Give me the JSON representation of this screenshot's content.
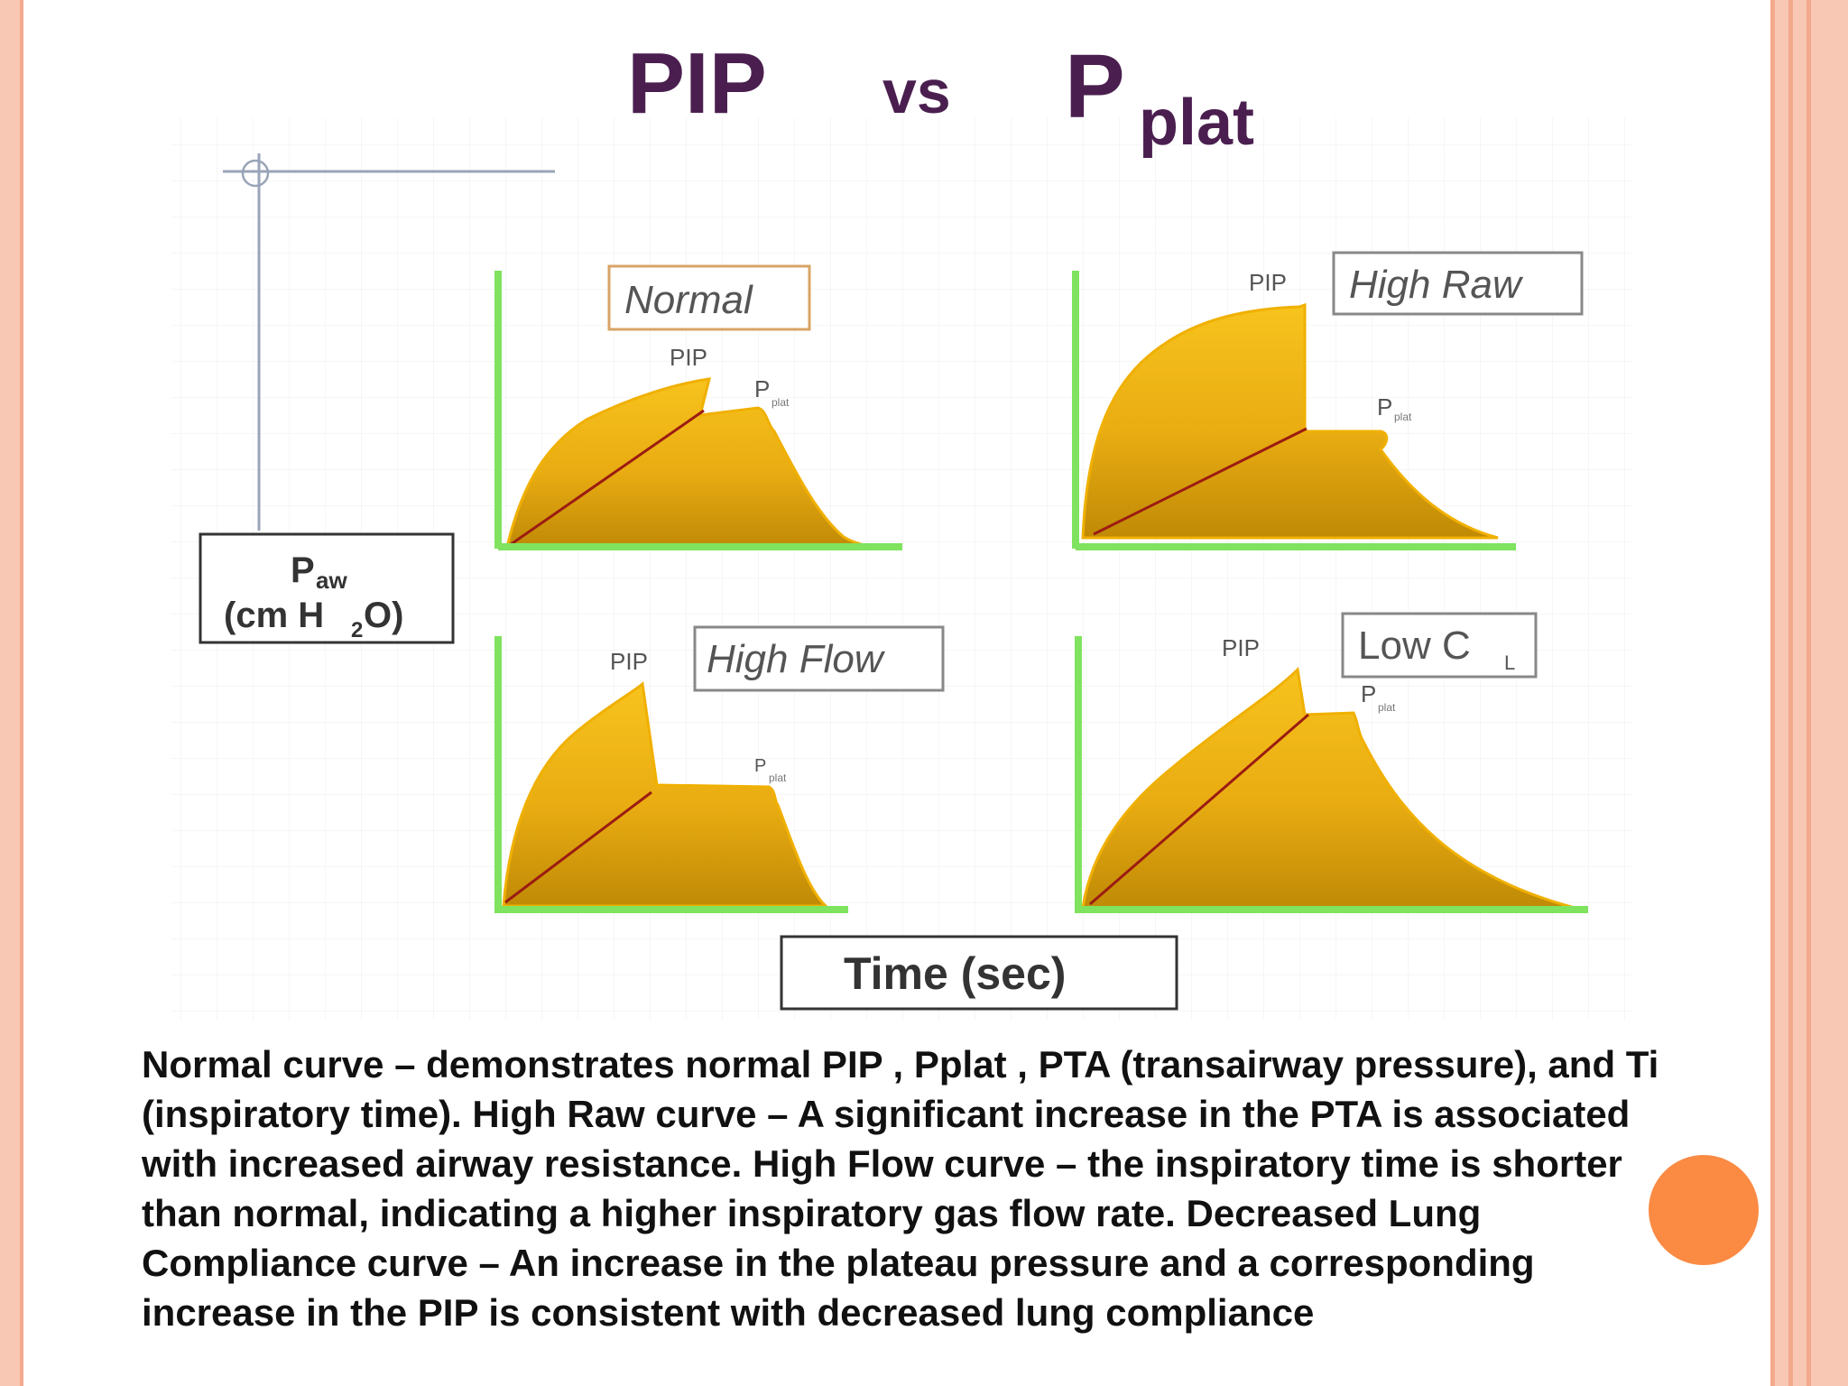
{
  "title": {
    "main": "PIP",
    "vs": "vs",
    "p": "P",
    "sub": "plat"
  },
  "y_axis": {
    "p": "P",
    "p_sub": "aw",
    "unit_pre": "(cm H",
    "unit_sub": "2",
    "unit_post": "O)"
  },
  "x_axis": {
    "label": "Time (sec)"
  },
  "panels": [
    {
      "id": "normal",
      "label": "Normal",
      "pip": "PIP",
      "pplat": "P",
      "pplat_sub": "plat"
    },
    {
      "id": "high-raw",
      "label": "High Raw",
      "pip": "PIP",
      "pplat": "P",
      "pplat_sub": "plat"
    },
    {
      "id": "high-flow",
      "label": "High Flow",
      "pip": "PIP",
      "pplat": "P",
      "pplat_sub": "plat"
    },
    {
      "id": "low-cl",
      "label": "Low C",
      "label_sub": "L",
      "pip": "PIP",
      "pplat": "P",
      "pplat_sub": "plat"
    }
  ],
  "caption": "Normal curve – demonstrates normal PIP , Pplat , PTA (transairway pressure), and Ti (inspiratory time). High Raw curve – A significant increase in the PTA is associated with increased airway resistance. High Flow curve – the inspiratory time is shorter than normal, indicating a higher inspiratory gas flow rate. Decreased Lung Compliance curve – An increase in the plateau pressure and a corresponding increase in the PIP is consistent with decreased lung compliance",
  "colors": {
    "title": "#4a1f4f",
    "axis_green": "#7fe35f",
    "fill_gold": "#f2b81a",
    "fill_dark": "#b8860b",
    "ramp_red": "#9b1c12",
    "accent": "#fb8a43",
    "border": "#f8c8b4"
  }
}
